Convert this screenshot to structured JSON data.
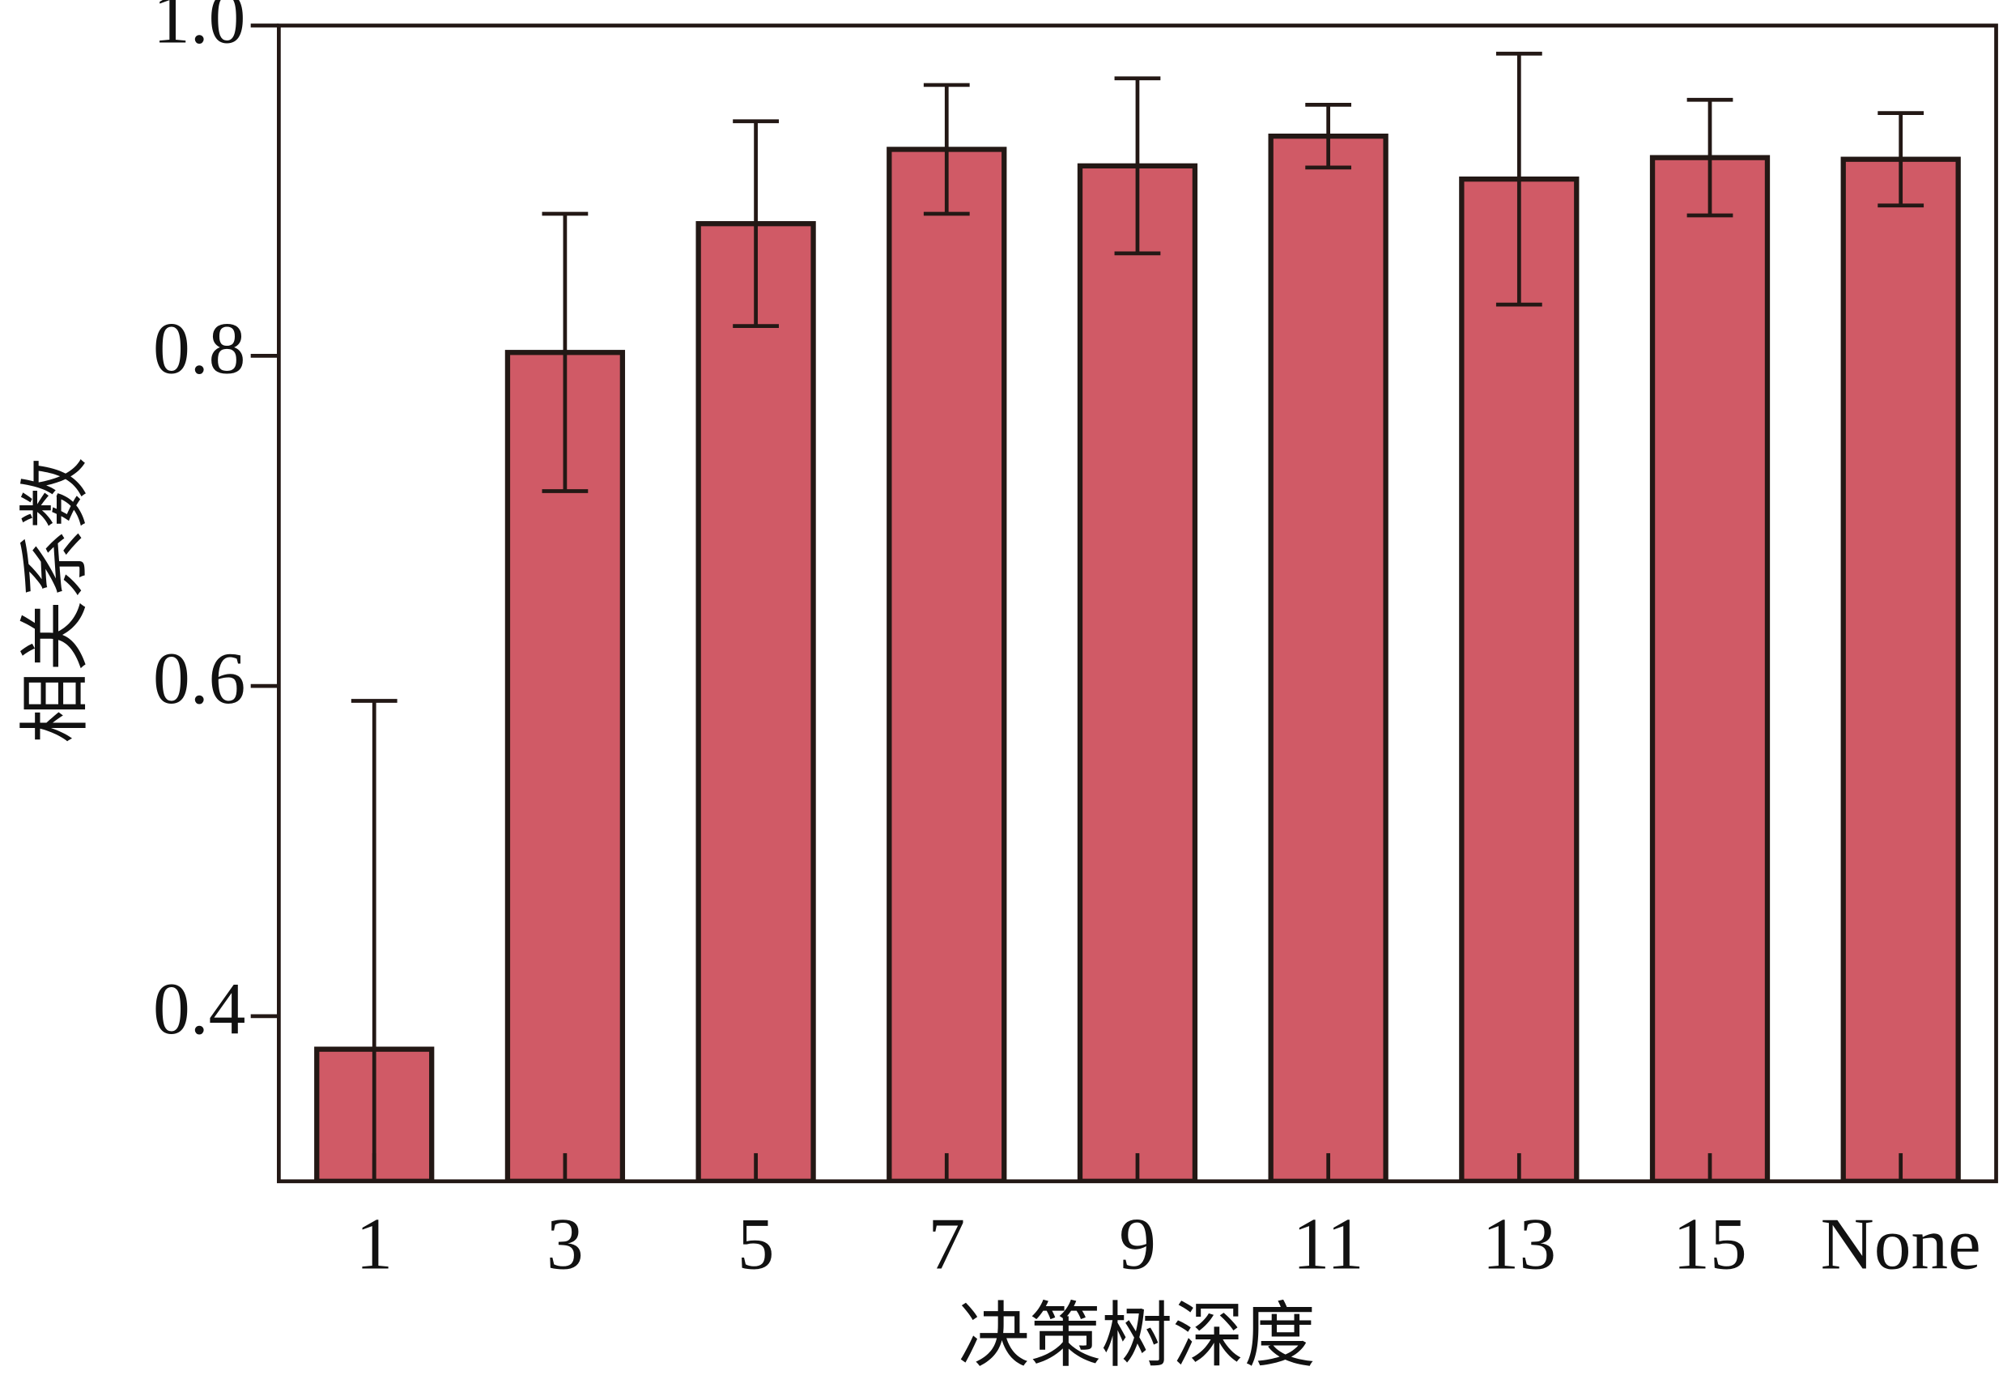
{
  "chart_data": {
    "type": "bar",
    "x_label": "决策树深度",
    "y_label": "相关系数",
    "categories": [
      "1",
      "3",
      "5",
      "7",
      "9",
      "11",
      "13",
      "15",
      "None"
    ],
    "values": [
      0.38,
      0.802,
      0.88,
      0.925,
      0.915,
      0.933,
      0.907,
      0.92,
      0.919
    ],
    "errors": [
      0.211,
      0.084,
      0.062,
      0.039,
      0.053,
      0.019,
      0.076,
      0.035,
      0.028
    ],
    "color": "#d05a66",
    "ylim": [
      0.3,
      1.0
    ],
    "yticks": [
      0.4,
      0.6,
      0.8,
      {
        "value": 1.0,
        "label": "1.0"
      }
    ]
  }
}
